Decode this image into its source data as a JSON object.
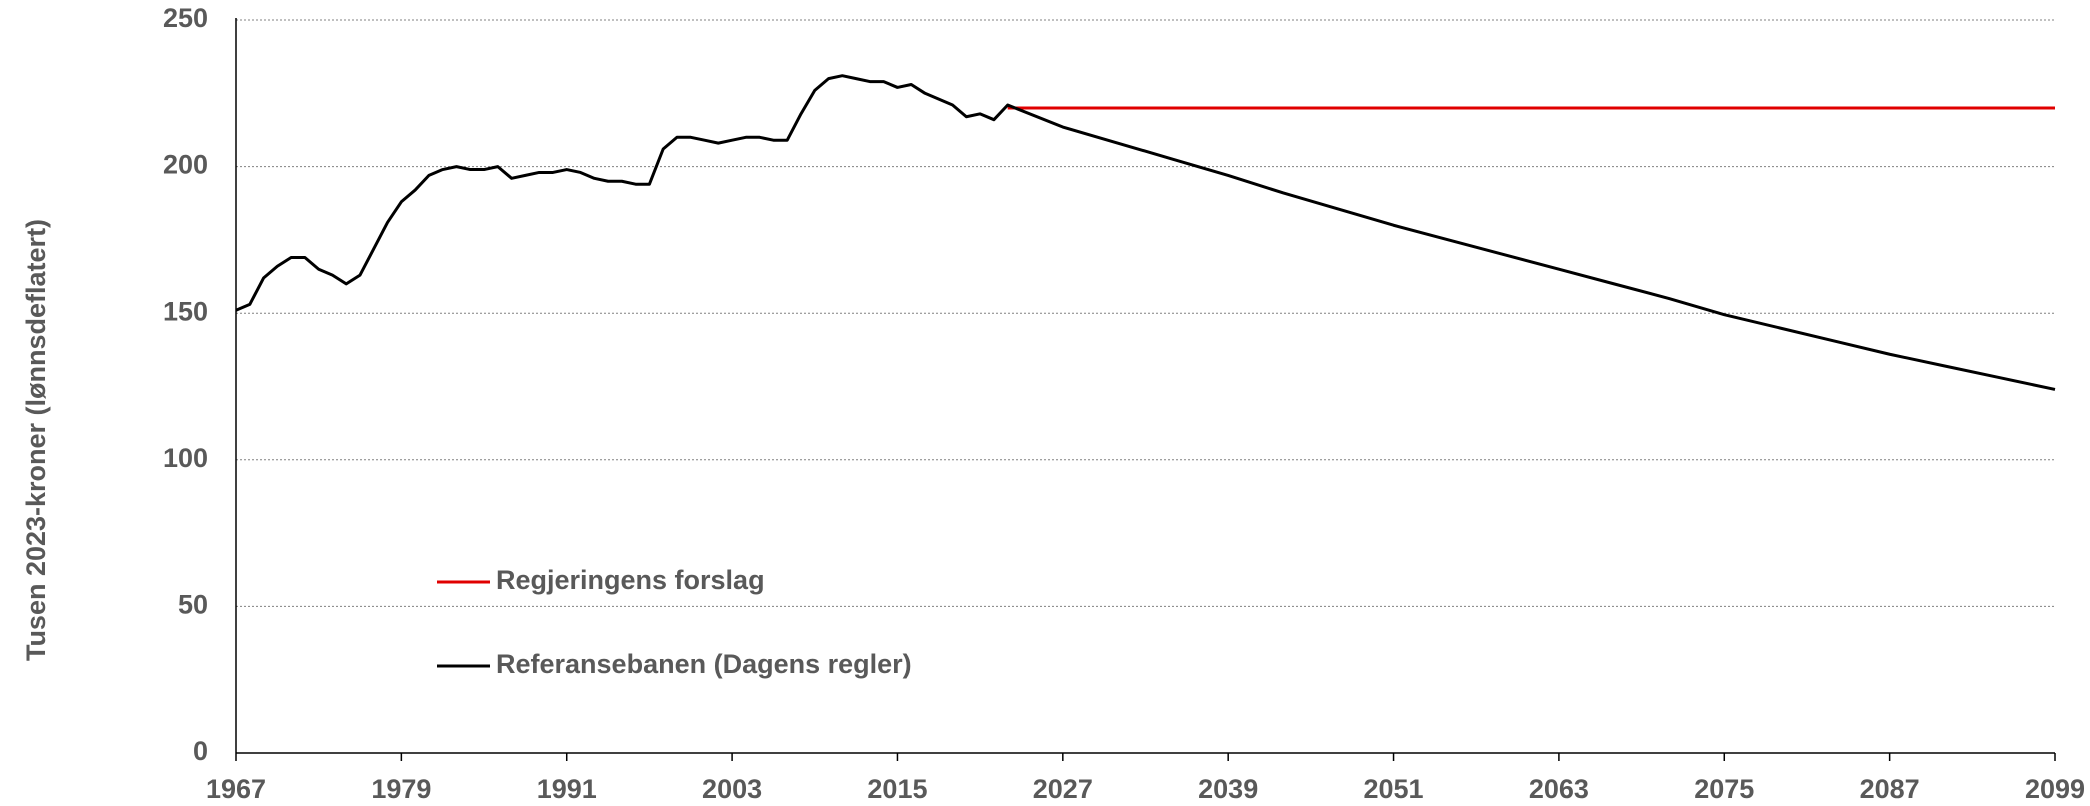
{
  "chart_data": {
    "type": "line",
    "ylabel": "Tusen   2023-kroner (lønnsdeflatert)",
    "x": [
      1967,
      1968,
      1969,
      1970,
      1971,
      1972,
      1973,
      1974,
      1975,
      1976,
      1977,
      1978,
      1979,
      1980,
      1981,
      1982,
      1983,
      1984,
      1985,
      1986,
      1987,
      1988,
      1989,
      1990,
      1991,
      1992,
      1993,
      1994,
      1995,
      1996,
      1997,
      1998,
      1999,
      2000,
      2001,
      2002,
      2003,
      2004,
      2005,
      2006,
      2007,
      2008,
      2009,
      2010,
      2011,
      2012,
      2013,
      2014,
      2015,
      2016,
      2017,
      2018,
      2019,
      2020,
      2021,
      2022,
      2023,
      2027,
      2031,
      2035,
      2039,
      2043,
      2047,
      2051,
      2055,
      2059,
      2063,
      2067,
      2071,
      2075,
      2079,
      2083,
      2087,
      2091,
      2095,
      2099
    ],
    "series": [
      {
        "name": "Regjeringens forslag",
        "color": "#e00000",
        "values": [
          null,
          null,
          null,
          null,
          null,
          null,
          null,
          null,
          null,
          null,
          null,
          null,
          null,
          null,
          null,
          null,
          null,
          null,
          null,
          null,
          null,
          null,
          null,
          null,
          null,
          null,
          null,
          null,
          null,
          null,
          null,
          null,
          null,
          null,
          null,
          null,
          null,
          null,
          null,
          null,
          null,
          null,
          null,
          null,
          null,
          null,
          null,
          null,
          null,
          null,
          null,
          null,
          null,
          null,
          null,
          null,
          220,
          220,
          220,
          220,
          220,
          220,
          220,
          220,
          220,
          220,
          220,
          220,
          220,
          220,
          220,
          220,
          220,
          220,
          220,
          220
        ]
      },
      {
        "name": "Referansebanen (Dagens regler)",
        "color": "#000000",
        "values": [
          151,
          153,
          162,
          166,
          169,
          169,
          165,
          163,
          160,
          163,
          172,
          181,
          188,
          192,
          197,
          199,
          200,
          199,
          199,
          200,
          196,
          197,
          198,
          198,
          199,
          198,
          196,
          195,
          195,
          194,
          194,
          206,
          210,
          210,
          209,
          208,
          209,
          210,
          210,
          209,
          209,
          218,
          226,
          230,
          231,
          230,
          229,
          229,
          227,
          228,
          225,
          223,
          221,
          217,
          218,
          216,
          221,
          213.5,
          208,
          202.5,
          197,
          191,
          185.5,
          180,
          175,
          170,
          165,
          160,
          155,
          149.5,
          145,
          140.5,
          136,
          132,
          128,
          124
        ]
      }
    ],
    "xlim": [
      1967,
      2099
    ],
    "xticks": [
      1967,
      1979,
      1991,
      2003,
      2015,
      2027,
      2039,
      2051,
      2063,
      2075,
      2087,
      2099
    ],
    "ylim": [
      0,
      250
    ],
    "yticks": [
      0,
      50,
      100,
      150,
      200,
      250
    ],
    "grid": true
  }
}
